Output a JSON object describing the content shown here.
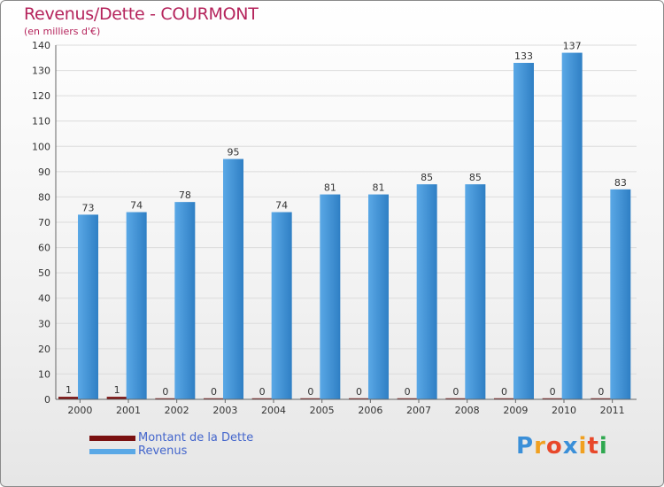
{
  "title": "Revenus/Dette - COURMONT",
  "subtitle": "(en milliers d'€)",
  "colors": {
    "title": "#b5245c",
    "dette": "#7a1010",
    "revenus": "#5aa8e6",
    "revenus_dark": "#2f7fc4",
    "grid": "#dcdcdc",
    "axis": "#666666"
  },
  "chart_data": {
    "type": "bar",
    "title": "Revenus/Dette - COURMONT",
    "ylabel": "(en milliers d'€)",
    "xlabel": "",
    "ylim": [
      0,
      140
    ],
    "yticks": [
      0,
      10,
      20,
      30,
      40,
      50,
      60,
      70,
      80,
      90,
      100,
      110,
      120,
      130,
      140
    ],
    "grid": true,
    "categories": [
      "2000",
      "2001",
      "2002",
      "2003",
      "2004",
      "2005",
      "2006",
      "2007",
      "2008",
      "2009",
      "2010",
      "2011"
    ],
    "series": [
      {
        "name": "Montant de la Dette",
        "values": [
          1,
          1,
          0,
          0,
          0,
          0,
          0,
          0,
          0,
          0,
          0,
          0
        ]
      },
      {
        "name": "Revenus",
        "values": [
          73,
          74,
          78,
          95,
          74,
          81,
          81,
          85,
          85,
          133,
          137,
          83
        ]
      }
    ]
  },
  "legend": {
    "dette_label": "Montant de la Dette",
    "revenus_label": "Revenus"
  },
  "logo": {
    "letters": [
      "P",
      "r",
      "o",
      "x",
      "i",
      "t",
      "i"
    ],
    "letter_colors": [
      "#3a8fd8",
      "#f0a020",
      "#e8482a",
      "#3a8fd8",
      "#f0a020",
      "#e8482a",
      "#2fa84f"
    ]
  }
}
